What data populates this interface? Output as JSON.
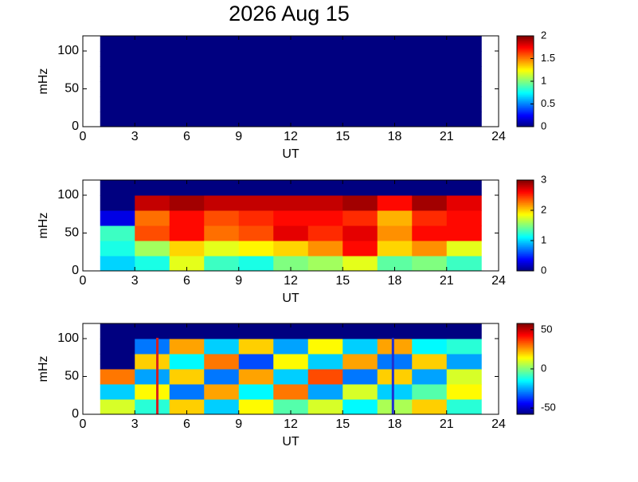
{
  "chart_data": [
    {
      "type": "heatmap",
      "title": "2026 Aug 15",
      "xlabel": "UT",
      "ylabel": "mHz",
      "colormap": "jet",
      "xlim": [
        0,
        24
      ],
      "xticks": [
        0,
        3,
        6,
        9,
        12,
        15,
        18,
        21,
        24
      ],
      "ylim": [
        0,
        120
      ],
      "yticks": [
        0,
        50,
        100
      ],
      "x_edges": [
        1,
        3,
        5,
        7,
        9,
        11,
        13,
        15,
        17,
        19,
        21,
        23
      ],
      "y_edges": [
        0,
        20,
        40,
        60,
        80,
        100,
        120
      ],
      "zlim": [
        0,
        2
      ],
      "zticks": [
        0,
        0.5,
        1,
        1.5,
        2
      ],
      "z": [
        [
          0,
          0,
          0,
          0,
          0,
          0,
          0,
          0,
          0,
          0,
          0
        ],
        [
          0,
          0,
          0,
          0,
          0,
          0,
          0,
          0,
          0,
          0,
          0
        ],
        [
          0,
          0,
          0,
          0,
          0,
          0,
          0,
          0,
          0,
          0,
          0
        ],
        [
          0,
          0,
          0,
          0,
          0,
          0,
          0,
          0,
          0,
          0,
          0
        ],
        [
          0,
          0,
          0,
          0,
          0,
          0,
          0,
          0,
          0,
          0,
          0
        ],
        [
          0,
          0,
          0,
          0,
          0,
          0,
          0,
          0,
          0,
          0,
          0
        ]
      ]
    },
    {
      "type": "heatmap",
      "xlabel": "UT",
      "ylabel": "mHz",
      "colormap": "jet",
      "xlim": [
        0,
        24
      ],
      "xticks": [
        0,
        3,
        6,
        9,
        12,
        15,
        18,
        21,
        24
      ],
      "ylim": [
        0,
        120
      ],
      "yticks": [
        0,
        50,
        100
      ],
      "x_edges": [
        1,
        3,
        5,
        7,
        9,
        11,
        13,
        15,
        17,
        19,
        21,
        23
      ],
      "y_edges": [
        0,
        20,
        40,
        60,
        80,
        100,
        120
      ],
      "zlim": [
        0,
        3
      ],
      "zticks": [
        0,
        1,
        2,
        3
      ],
      "z": [
        [
          1.0,
          1.2,
          1.8,
          1.3,
          1.2,
          1.5,
          1.6,
          1.8,
          1.4,
          1.5,
          1.3
        ],
        [
          1.2,
          1.6,
          2.0,
          1.8,
          1.9,
          2.0,
          2.2,
          2.6,
          2.0,
          2.2,
          1.8
        ],
        [
          1.3,
          2.4,
          2.6,
          2.3,
          2.4,
          2.7,
          2.5,
          2.7,
          2.2,
          2.6,
          2.6
        ],
        [
          0.3,
          2.3,
          2.6,
          2.4,
          2.5,
          2.6,
          2.6,
          2.5,
          2.1,
          2.5,
          2.6
        ],
        [
          0,
          2.8,
          2.9,
          2.8,
          2.8,
          2.8,
          2.8,
          2.9,
          2.6,
          2.9,
          2.7
        ],
        [
          0,
          0,
          0,
          0,
          0,
          0,
          0,
          0,
          0,
          0,
          0
        ]
      ]
    },
    {
      "type": "heatmap",
      "xlabel": "UT",
      "ylabel": "mHz",
      "colormap": "jet",
      "xlim": [
        0,
        24
      ],
      "xticks": [
        0,
        3,
        6,
        9,
        12,
        15,
        18,
        21,
        24
      ],
      "ylim": [
        0,
        120
      ],
      "yticks": [
        0,
        50,
        100
      ],
      "x_edges": [
        1,
        3,
        5,
        7,
        9,
        11,
        13,
        15,
        17,
        19,
        21,
        23
      ],
      "y_edges": [
        0,
        20,
        40,
        60,
        80,
        100,
        120
      ],
      "zlim": [
        -58,
        58
      ],
      "zticks": [
        -50,
        0,
        50
      ],
      "z": [
        [
          10,
          -10,
          20,
          -20,
          15,
          -5,
          10,
          -15,
          5,
          20,
          -10
        ],
        [
          -20,
          15,
          -30,
          25,
          -15,
          30,
          -25,
          10,
          -20,
          -5,
          15
        ],
        [
          30,
          -25,
          20,
          -30,
          25,
          -20,
          35,
          -30,
          20,
          -25,
          10
        ],
        [
          -58,
          20,
          -15,
          30,
          -35,
          15,
          -20,
          25,
          -30,
          20,
          -25
        ],
        [
          -58,
          -30,
          25,
          -20,
          20,
          -25,
          15,
          -20,
          25,
          -15,
          -10
        ],
        [
          -58,
          -58,
          -58,
          -58,
          -58,
          -58,
          -58,
          -58,
          -58,
          -58,
          -58
        ]
      ],
      "vlines": [
        {
          "x": 4.3,
          "color": "#d42020"
        },
        {
          "x": 17.9,
          "color": "#2030d0"
        }
      ]
    }
  ]
}
